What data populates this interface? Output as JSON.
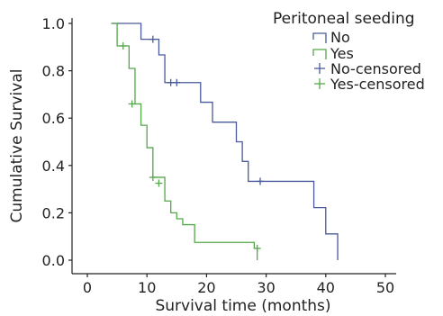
{
  "chart_data": {
    "type": "line",
    "step": true,
    "xlabel": "Survival time (months)",
    "ylabel": "Cumulative Survival",
    "xlim": [
      0,
      50
    ],
    "ylim": [
      0,
      1
    ],
    "xticks": [
      0,
      10,
      20,
      30,
      40,
      50
    ],
    "yticks": [
      "0.0",
      "0.2",
      "0.4",
      "0.6",
      "0.8",
      "1.0"
    ],
    "grid": false,
    "legend": {
      "title": "Peritoneal seeding",
      "placement": "top-right",
      "entries": [
        "No",
        "Yes",
        "No-censored",
        "Yes-censored"
      ]
    },
    "colors": {
      "no": "#4a5a9a",
      "yes": "#55a84a"
    },
    "series": [
      {
        "name": "No",
        "x": [
          4,
          9,
          12,
          13,
          19,
          21,
          25,
          26,
          27,
          38,
          40,
          42
        ],
        "y": [
          1.0,
          0.933,
          0.867,
          0.75,
          0.667,
          0.583,
          0.5,
          0.417,
          0.333,
          0.222,
          0.111,
          0.0
        ],
        "censored": [
          {
            "x": 11,
            "y": 0.933
          },
          {
            "x": 14,
            "y": 0.75
          },
          {
            "x": 15,
            "y": 0.75
          },
          {
            "x": 29,
            "y": 0.333
          }
        ]
      },
      {
        "name": "Yes",
        "x": [
          4,
          5,
          7,
          8,
          9,
          10,
          11,
          13,
          14,
          15,
          16,
          18,
          28,
          28.5
        ],
        "y": [
          1.0,
          0.905,
          0.81,
          0.66,
          0.57,
          0.475,
          0.35,
          0.25,
          0.2,
          0.175,
          0.15,
          0.075,
          0.05,
          0.0
        ],
        "censored": [
          {
            "x": 6,
            "y": 0.905
          },
          {
            "x": 7.5,
            "y": 0.66
          },
          {
            "x": 11,
            "y": 0.35
          },
          {
            "x": 12,
            "y": 0.325
          },
          {
            "x": 28.5,
            "y": 0.05
          }
        ]
      }
    ]
  }
}
